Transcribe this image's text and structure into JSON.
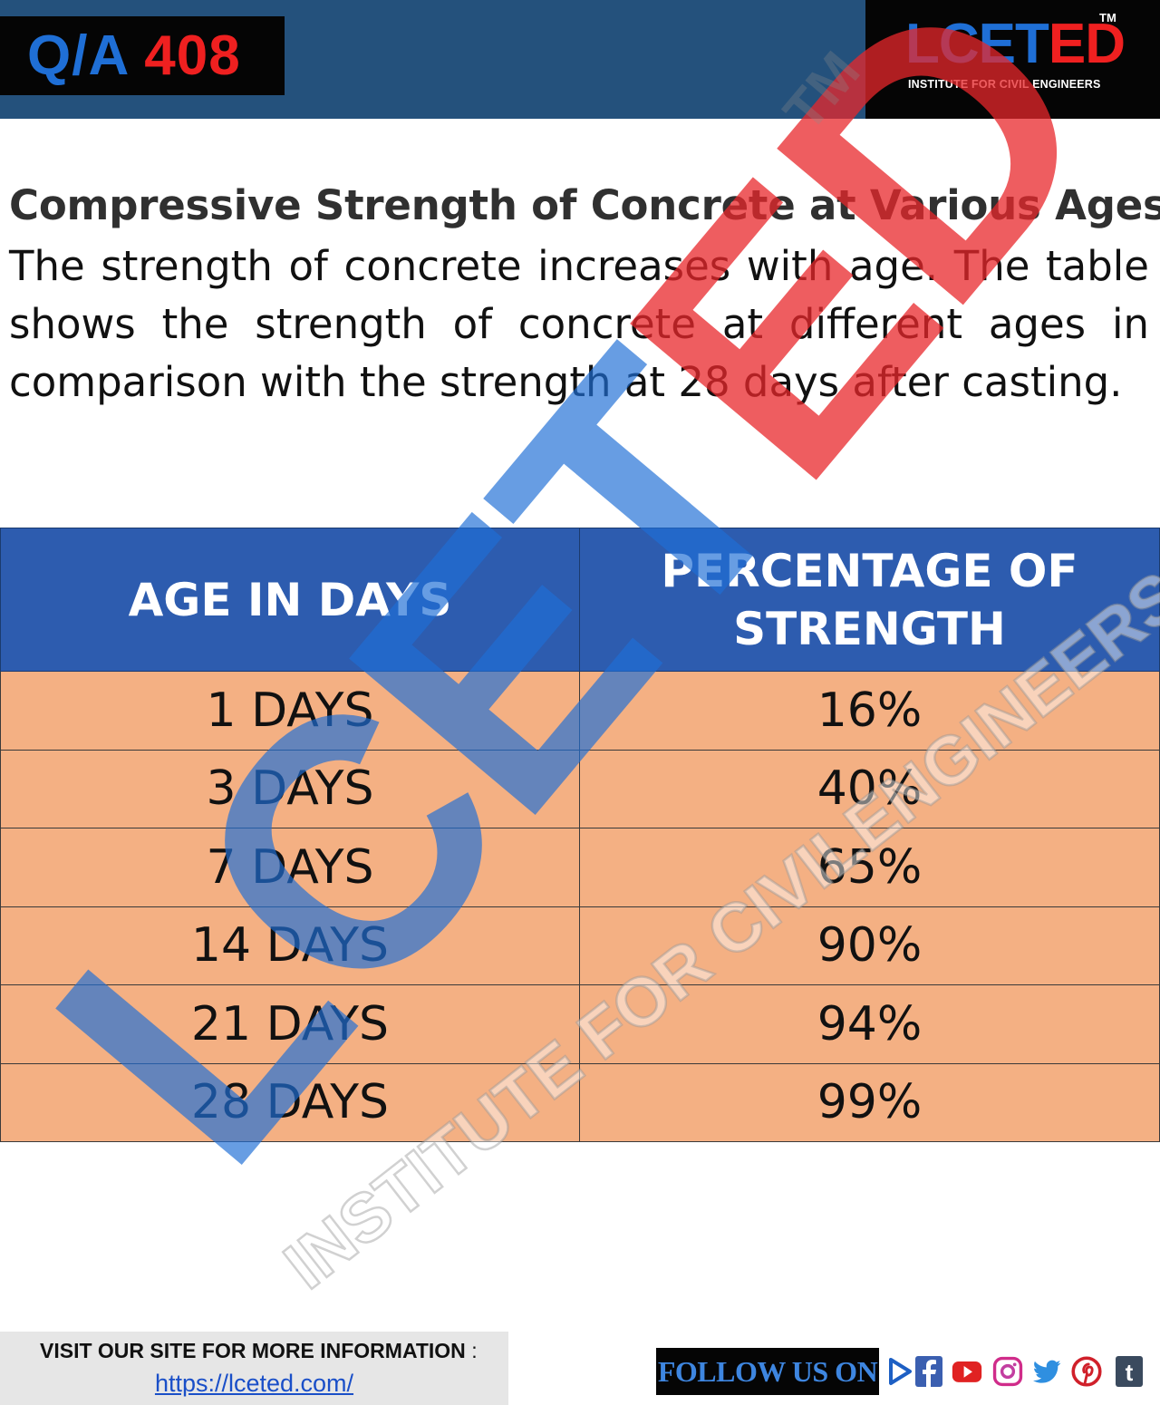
{
  "header": {
    "qa_prefix": "Q/A",
    "qa_number": "408",
    "logo_part1": "LCET",
    "logo_part2": "ED",
    "logo_tm": "TM",
    "logo_subtitle": "INSTITUTE FOR CIVIL ENGINEERS"
  },
  "content": {
    "title": "Compressive Strength of Concrete at Various Ages",
    "description": "The strength of concrete increases with age. The table shows the strength of concrete at different ages in comparison with the strength at 28 days after casting."
  },
  "table": {
    "headers": [
      "AGE IN DAYS",
      "PERCENTAGE OF STRENGTH"
    ],
    "rows": [
      [
        "1 DAYS",
        "16%"
      ],
      [
        "3 DAYS",
        "40%"
      ],
      [
        "7 DAYS",
        "65%"
      ],
      [
        "14 DAYS",
        "90%"
      ],
      [
        "21 DAYS",
        "94%"
      ],
      [
        "28 DAYS",
        "99%"
      ]
    ]
  },
  "watermark": {
    "part1": "LCET",
    "part2": "ED",
    "tm": "TM",
    "subtitle": "INSTITUTE FOR CIVILENGINEERS"
  },
  "footer": {
    "visit_label": "VISIT OUR SITE FOR MORE INFORMATION",
    "visit_colon": ":",
    "visit_link": "https://lceted.com/",
    "follow_label": "FOLLOW US ON",
    "social_icons": [
      "arrow-icon",
      "facebook-icon",
      "youtube-icon",
      "instagram-icon",
      "twitter-icon",
      "pinterest-icon",
      "tumblr-icon"
    ]
  },
  "colors": {
    "header_bg": "#24517c",
    "brand_blue": "#1f6fd6",
    "brand_red": "#ef2020",
    "table_header_bg": "#2d5caf",
    "table_row_bg": "#f4b083"
  }
}
